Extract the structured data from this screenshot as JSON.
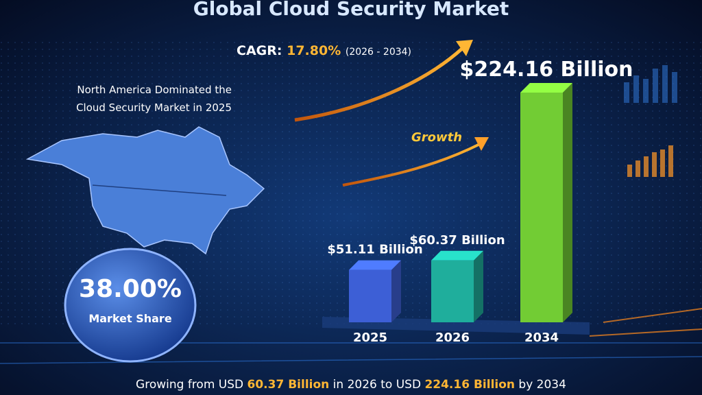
{
  "chart_data": {
    "type": "bar",
    "title": "Global Cloud Security Market",
    "categories": [
      "2025",
      "2026",
      "2034"
    ],
    "values": [
      51.11,
      60.37,
      224.16
    ],
    "value_labels": [
      "$51.11 Billion",
      "$60.37 Billion",
      "$224.16 Billion"
    ],
    "colors": [
      "#3d5fd6",
      "#1fae9c",
      "#72cc34"
    ],
    "annotations": {
      "cagr_label": "CAGR:",
      "cagr_value": "17.80%",
      "cagr_period": "(2026 - 2034)",
      "growth": "Growth",
      "region_note": [
        "North America Dominated the",
        "Cloud Security Market in 2025"
      ],
      "share_value": "38.00%",
      "share_label": "Market Share",
      "footer": [
        "Growing from USD ",
        "60.37 Billion",
        " in 2026 to USD ",
        "224.16 Billion",
        " by 2034"
      ]
    }
  }
}
